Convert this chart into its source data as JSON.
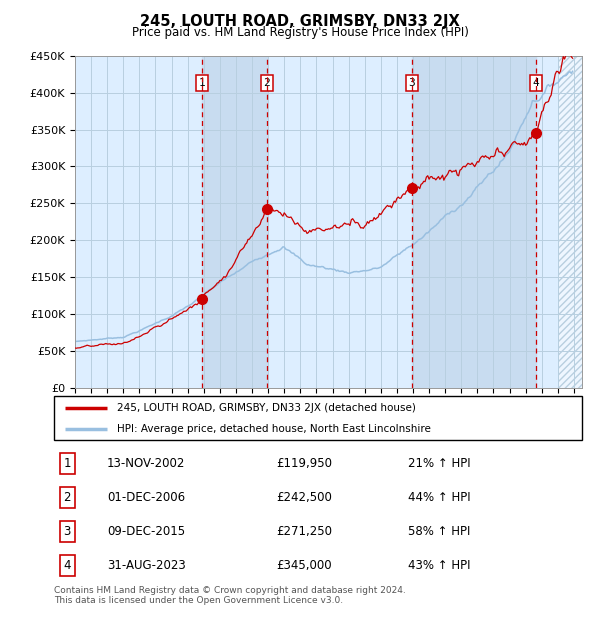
{
  "title": "245, LOUTH ROAD, GRIMSBY, DN33 2JX",
  "subtitle": "Price paid vs. HM Land Registry's House Price Index (HPI)",
  "x_start_year": 1995,
  "x_end_year": 2026,
  "y_min": 0,
  "y_max": 450000,
  "y_ticks": [
    0,
    50000,
    100000,
    150000,
    200000,
    250000,
    300000,
    350000,
    400000,
    450000
  ],
  "y_tick_labels": [
    "£0",
    "£50K",
    "£100K",
    "£150K",
    "£200K",
    "£250K",
    "£300K",
    "£350K",
    "£400K",
    "£450K"
  ],
  "hpi_color": "#99bfe0",
  "house_color": "#cc0000",
  "sale_marker_color": "#cc0000",
  "sale_points": [
    {
      "year": 2002.87,
      "price": 119950,
      "label": "1"
    },
    {
      "year": 2006.92,
      "price": 242500,
      "label": "2"
    },
    {
      "year": 2015.94,
      "price": 271250,
      "label": "3"
    },
    {
      "year": 2023.66,
      "price": 345000,
      "label": "4"
    }
  ],
  "vline_color": "#cc0000",
  "chart_bg_color": "#ddeeff",
  "shade_color": "#c8dcf0",
  "legend_house_label": "245, LOUTH ROAD, GRIMSBY, DN33 2JX (detached house)",
  "legend_hpi_label": "HPI: Average price, detached house, North East Lincolnshire",
  "table_rows": [
    {
      "num": "1",
      "date": "13-NOV-2002",
      "price": "£119,950",
      "pct": "21% ↑ HPI"
    },
    {
      "num": "2",
      "date": "01-DEC-2006",
      "price": "£242,500",
      "pct": "44% ↑ HPI"
    },
    {
      "num": "3",
      "date": "09-DEC-2015",
      "price": "£271,250",
      "pct": "58% ↑ HPI"
    },
    {
      "num": "4",
      "date": "31-AUG-2023",
      "price": "£345,000",
      "pct": "43% ↑ HPI"
    }
  ],
  "footnote": "Contains HM Land Registry data © Crown copyright and database right 2024.\nThis data is licensed under the Open Government Licence v3.0.",
  "bg_color": "#ffffff",
  "grid_color": "#b8cfe0"
}
